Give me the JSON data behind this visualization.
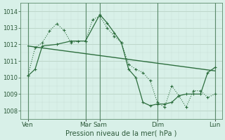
{
  "background_color": "#d8ede4",
  "plot_bg_color": "#d8f0e8",
  "grid_color_major": "#a8c8b4",
  "grid_color_minor": "#c8ddd8",
  "line_color": "#2d6e3e",
  "xlabel": "Pression niveau de la mer( hPa )",
  "ylim": [
    1007.5,
    1014.5
  ],
  "yticks": [
    1008,
    1009,
    1010,
    1011,
    1012,
    1013,
    1014
  ],
  "xtick_labels": [
    "Ven",
    "Mar",
    "Sam",
    "Dim",
    "Lun"
  ],
  "xtick_positions": [
    0,
    4,
    5,
    9,
    13
  ],
  "vline_positions": [
    0,
    4,
    5,
    9,
    13
  ],
  "series_dotted_x": [
    0,
    0.5,
    1,
    1.5,
    2,
    2.5,
    3,
    3.5,
    4,
    4.5,
    5,
    5.5,
    6,
    6.5,
    7,
    7.5,
    8,
    8.5,
    9,
    9.5,
    10,
    10.5,
    11,
    11.5,
    12,
    12.5,
    13
  ],
  "series_dotted_y": [
    1010.1,
    1011.8,
    1012.1,
    1012.8,
    1013.25,
    1012.85,
    1012.1,
    1012.2,
    1012.2,
    1013.5,
    1013.7,
    1013.0,
    1012.5,
    1012.1,
    1010.8,
    1010.5,
    1010.3,
    1009.8,
    1008.5,
    1008.2,
    1009.5,
    1008.9,
    1008.2,
    1009.2,
    1009.2,
    1008.8,
    1009.0
  ],
  "series_solid_x": [
    0,
    0.5,
    1,
    2,
    3,
    4,
    5,
    5.5,
    6,
    6.5,
    7,
    7.5,
    8,
    8.5,
    9,
    9.5,
    10,
    10.5,
    11,
    11.5,
    12,
    12.5,
    13
  ],
  "series_solid_y": [
    1010.1,
    1010.5,
    1011.9,
    1012.0,
    1012.2,
    1012.2,
    1013.8,
    1013.3,
    1012.7,
    1012.1,
    1010.5,
    1010.0,
    1008.5,
    1008.3,
    1008.4,
    1008.4,
    1008.5,
    1008.9,
    1009.0,
    1009.0,
    1009.0,
    1010.3,
    1010.6
  ],
  "trend_x": [
    0,
    13
  ],
  "trend_y": [
    1011.9,
    1010.4
  ]
}
